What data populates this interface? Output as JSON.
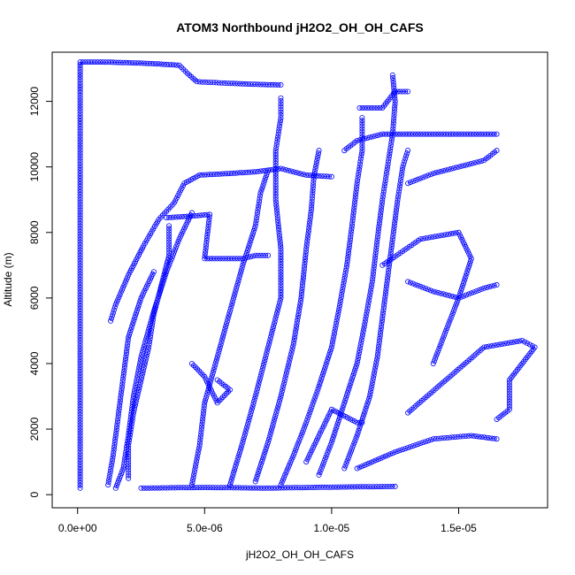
{
  "chart_data": {
    "type": "scatter",
    "title": "ATOM3 Northbound jH2O2_OH_OH_CAFS",
    "xlabel": "jH2O2_OH_OH_CAFS",
    "ylabel": "Altitude (m)",
    "xlim": [
      -1e-06,
      1.85e-05
    ],
    "ylim": [
      -400,
      13500
    ],
    "x_ticks": [
      0,
      5e-06,
      1e-05,
      1.5e-05
    ],
    "x_tick_labels": [
      "0.0e+00",
      "5.0e-06",
      "1.0e-05",
      "1.5e-05"
    ],
    "y_ticks": [
      0,
      2000,
      4000,
      6000,
      8000,
      10000,
      12000
    ],
    "y_tick_labels": [
      "0",
      "2000",
      "4000",
      "6000",
      "8000",
      "10000",
      "12000"
    ],
    "marker": "open-circle",
    "series_color": "#0000ff",
    "grid": false,
    "legend": "none",
    "series": [
      {
        "values": [
          [
            1e-07,
            200
          ],
          [
            1e-07,
            3000
          ],
          [
            1e-07,
            6000
          ],
          [
            1e-07,
            9000
          ],
          [
            1e-07,
            11000
          ],
          [
            1e-07,
            12500
          ],
          [
            1e-07,
            13200
          ],
          [
            1e-06,
            13200
          ],
          [
            2e-06,
            13180
          ],
          [
            3e-06,
            13150
          ],
          [
            4e-06,
            13100
          ],
          [
            4.4e-06,
            12800
          ],
          [
            4.7e-06,
            12600
          ],
          [
            6e-06,
            12550
          ],
          [
            7e-06,
            12520
          ],
          [
            8e-06,
            12500
          ]
        ]
      },
      {
        "values": [
          [
            1.3e-06,
            5300
          ],
          [
            1.5e-06,
            5800
          ],
          [
            2e-06,
            6700
          ],
          [
            2.6e-06,
            7600
          ],
          [
            3.2e-06,
            8400
          ],
          [
            3.8e-06,
            8900
          ],
          [
            4.2e-06,
            9500
          ],
          [
            4.8e-06,
            9750
          ],
          [
            6e-06,
            9800
          ],
          [
            7e-06,
            9850
          ],
          [
            8e-06,
            9950
          ],
          [
            9e-06,
            9750
          ],
          [
            1e-05,
            9700
          ]
        ]
      },
      {
        "values": [
          [
            3.5e-06,
            8450
          ],
          [
            4.5e-06,
            8500
          ],
          [
            5.2e-06,
            8550
          ],
          [
            5e-06,
            7200
          ],
          [
            5.5e-06,
            7200
          ],
          [
            6.5e-06,
            7200
          ],
          [
            7e-06,
            7300
          ],
          [
            7.5e-06,
            7300
          ]
        ]
      },
      {
        "values": [
          [
            2e-06,
            500
          ],
          [
            2e-06,
            1500
          ],
          [
            2.2e-06,
            2500
          ],
          [
            2.5e-06,
            3500
          ],
          [
            2.8e-06,
            4500
          ],
          [
            3e-06,
            5500
          ],
          [
            3.4e-06,
            6700
          ],
          [
            3.6e-06,
            7300
          ],
          [
            3.6e-06,
            8200
          ]
        ]
      },
      {
        "values": [
          [
            1.5e-06,
            200
          ],
          [
            1.8e-06,
            800
          ],
          [
            2e-06,
            1800
          ],
          [
            2.2e-06,
            3000
          ],
          [
            2.5e-06,
            4200
          ],
          [
            3e-06,
            5600
          ],
          [
            3.5e-06,
            6800
          ],
          [
            4e-06,
            7800
          ],
          [
            4.5e-06,
            8600
          ]
        ]
      },
      {
        "values": [
          [
            1.2e-06,
            300
          ],
          [
            1.4e-06,
            1200
          ],
          [
            1.6e-06,
            2400
          ],
          [
            1.8e-06,
            3600
          ],
          [
            2e-06,
            4800
          ],
          [
            2.5e-06,
            6000
          ],
          [
            3e-06,
            6800
          ]
        ]
      },
      {
        "values": [
          [
            4.5e-06,
            300
          ],
          [
            4.8e-06,
            1500
          ],
          [
            5e-06,
            2800
          ],
          [
            5.5e-06,
            4200
          ],
          [
            6e-06,
            5600
          ],
          [
            6.5e-06,
            7000
          ],
          [
            7e-06,
            8200
          ],
          [
            7.2e-06,
            9200
          ],
          [
            7.5e-06,
            9900
          ]
        ]
      },
      {
        "values": [
          [
            6e-06,
            300
          ],
          [
            6.5e-06,
            1600
          ],
          [
            7e-06,
            3000
          ],
          [
            7.5e-06,
            4500
          ],
          [
            8e-06,
            6000
          ],
          [
            8e-06,
            7500
          ],
          [
            7.8e-06,
            9000
          ],
          [
            7.8e-06,
            10500
          ],
          [
            8e-06,
            11500
          ],
          [
            8e-06,
            12100
          ]
        ]
      },
      {
        "values": [
          [
            7e-06,
            400
          ],
          [
            7.5e-06,
            1600
          ],
          [
            8e-06,
            3000
          ],
          [
            8.5e-06,
            4600
          ],
          [
            8.8e-06,
            6000
          ],
          [
            9e-06,
            7500
          ],
          [
            9.2e-06,
            8700
          ],
          [
            9.3e-06,
            9700
          ],
          [
            9.5e-06,
            10500
          ]
        ]
      },
      {
        "values": [
          [
            8e-06,
            300
          ],
          [
            8.5e-06,
            1200
          ],
          [
            9e-06,
            2200
          ],
          [
            9.5e-06,
            3300
          ],
          [
            1e-05,
            4500
          ],
          [
            1.03e-05,
            5700
          ],
          [
            1.06e-05,
            7000
          ],
          [
            1.08e-05,
            8200
          ],
          [
            1.1e-05,
            9500
          ],
          [
            1.12e-05,
            10500
          ],
          [
            1.12e-05,
            11500
          ]
        ]
      },
      {
        "values": [
          [
            9.5e-06,
            600
          ],
          [
            1e-05,
            1600
          ],
          [
            1.05e-05,
            2800
          ],
          [
            1.1e-05,
            4000
          ],
          [
            1.13e-05,
            5200
          ],
          [
            1.16e-05,
            6500
          ],
          [
            1.18e-05,
            7800
          ],
          [
            1.2e-05,
            9000
          ],
          [
            1.22e-05,
            10000
          ],
          [
            1.24e-05,
            11000
          ],
          [
            1.25e-05,
            12000
          ],
          [
            1.24e-05,
            12800
          ]
        ]
      },
      {
        "values": [
          [
            1.05e-05,
            800
          ],
          [
            1.1e-05,
            1800
          ],
          [
            1.15e-05,
            3000
          ],
          [
            1.18e-05,
            4200
          ],
          [
            1.2e-05,
            5400
          ],
          [
            1.22e-05,
            6600
          ],
          [
            1.24e-05,
            7800
          ],
          [
            1.26e-05,
            9000
          ],
          [
            1.28e-05,
            10000
          ],
          [
            1.3e-05,
            10500
          ]
        ]
      },
      {
        "values": [
          [
            1.05e-05,
            10500
          ],
          [
            1.1e-05,
            10800
          ],
          [
            1.15e-05,
            10900
          ],
          [
            1.2e-05,
            11000
          ],
          [
            1.25e-05,
            11000
          ],
          [
            1.3e-05,
            11000
          ],
          [
            1.35e-05,
            11000
          ],
          [
            1.4e-05,
            11000
          ],
          [
            1.45e-05,
            11000
          ],
          [
            1.5e-05,
            11000
          ],
          [
            1.55e-05,
            11000
          ],
          [
            1.6e-05,
            11000
          ],
          [
            1.65e-05,
            11000
          ]
        ]
      },
      {
        "values": [
          [
            1.11e-05,
            11800
          ],
          [
            1.15e-05,
            11800
          ],
          [
            1.2e-05,
            11800
          ],
          [
            1.25e-05,
            12300
          ],
          [
            1.28e-05,
            12300
          ],
          [
            1.3e-05,
            12300
          ]
        ]
      },
      {
        "values": [
          [
            1.3e-05,
            6500
          ],
          [
            1.4e-05,
            6200
          ],
          [
            1.5e-05,
            6000
          ],
          [
            1.6e-05,
            6300
          ],
          [
            1.65e-05,
            6400
          ]
        ]
      },
      {
        "values": [
          [
            1.3e-05,
            2500
          ],
          [
            1.45e-05,
            3500
          ],
          [
            1.6e-05,
            4500
          ],
          [
            1.75e-05,
            4700
          ],
          [
            1.8e-05,
            4500
          ],
          [
            1.7e-05,
            3500
          ],
          [
            1.7e-05,
            2600
          ],
          [
            1.65e-05,
            2300
          ]
        ]
      },
      {
        "values": [
          [
            1.1e-05,
            800
          ],
          [
            1.25e-05,
            1300
          ],
          [
            1.4e-05,
            1700
          ],
          [
            1.55e-05,
            1800
          ],
          [
            1.65e-05,
            1700
          ]
        ]
      },
      {
        "values": [
          [
            1.3e-05,
            9500
          ],
          [
            1.4e-05,
            9800
          ],
          [
            1.5e-05,
            10000
          ],
          [
            1.6e-05,
            10200
          ],
          [
            1.65e-05,
            10500
          ]
        ]
      },
      {
        "values": [
          [
            1.2e-05,
            7000
          ],
          [
            1.35e-05,
            7800
          ],
          [
            1.5e-05,
            8000
          ],
          [
            1.55e-05,
            7200
          ],
          [
            1.5e-05,
            6000
          ],
          [
            1.45e-05,
            5000
          ],
          [
            1.4e-05,
            4000
          ]
        ]
      },
      {
        "values": [
          [
            2.5e-06,
            200
          ],
          [
            5e-06,
            220
          ],
          [
            7.5e-06,
            200
          ],
          [
            1e-05,
            230
          ],
          [
            1.25e-05,
            250
          ]
        ]
      },
      {
        "values": [
          [
            5.5e-06,
            3500
          ],
          [
            6e-06,
            3200
          ],
          [
            5.5e-06,
            2800
          ],
          [
            5e-06,
            3600
          ],
          [
            4.5e-06,
            4000
          ]
        ]
      },
      {
        "values": [
          [
            9e-06,
            1000
          ],
          [
            9.5e-06,
            1800
          ],
          [
            1e-05,
            2600
          ],
          [
            1.1e-05,
            2200
          ],
          [
            1.12e-05,
            2200
          ]
        ]
      }
    ]
  }
}
